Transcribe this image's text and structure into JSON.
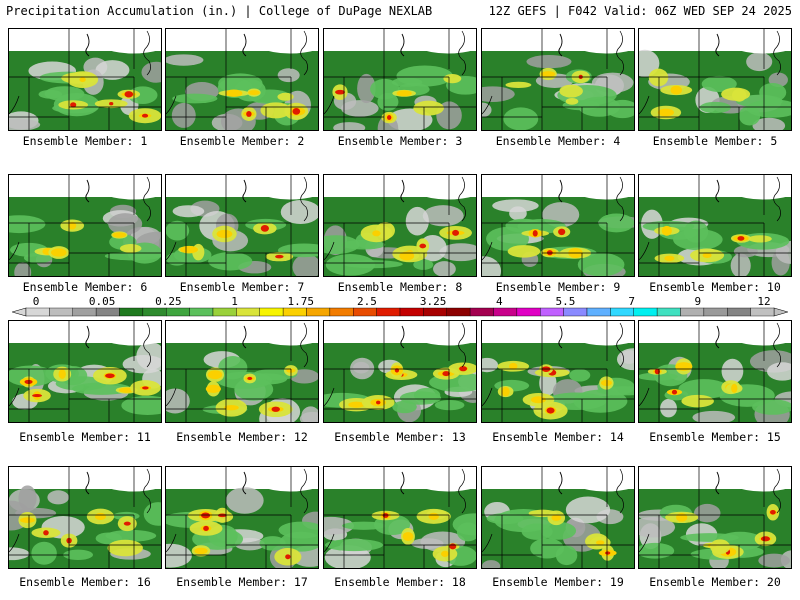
{
  "header": {
    "title_left": "Precipitation Accumulation (in.) | College of DuPage NEXLAB",
    "title_right": "12Z GEFS | F042 Valid: 06Z WED SEP 24 2025"
  },
  "colors": {
    "levels": [
      "#d7d7d7",
      "#bdbdbd",
      "#a0a0a0",
      "#858585",
      "#1f7a1f",
      "#2e8b2e",
      "#3fa53f",
      "#5cc05c",
      "#9ad13a",
      "#d9e43a",
      "#f7f400",
      "#fbd000",
      "#f6a600",
      "#f27c00",
      "#e84b00",
      "#e01b00",
      "#c40000",
      "#a80000",
      "#8c0000",
      "#a3004f",
      "#c8008a",
      "#e000c4",
      "#c060ff",
      "#8a8aff",
      "#5fb0ff",
      "#30d8ff",
      "#00f0f0",
      "#40e0c0",
      "#b0b0b0",
      "#9a9a9a",
      "#848484",
      "#c0c0c0"
    ],
    "background": "#ffffff"
  },
  "colorbar": {
    "tick_labels": [
      "0",
      "0.05",
      "0.25",
      "1",
      "1.75",
      "2.5",
      "3.25",
      "4",
      "5.5",
      "7",
      "9",
      "12"
    ]
  },
  "panels": [
    {
      "label": "Ensemble Member: 1",
      "intensity": 0.75
    },
    {
      "label": "Ensemble Member: 2",
      "intensity": 0.85
    },
    {
      "label": "Ensemble Member: 3",
      "intensity": 0.55
    },
    {
      "label": "Ensemble Member: 4",
      "intensity": 0.55
    },
    {
      "label": "Ensemble Member: 5",
      "intensity": 0.4
    },
    {
      "label": "Ensemble Member: 6",
      "intensity": 0.45
    },
    {
      "label": "Ensemble Member: 7",
      "intensity": 0.5
    },
    {
      "label": "Ensemble Member: 8",
      "intensity": 0.8
    },
    {
      "label": "Ensemble Member: 9",
      "intensity": 0.7
    },
    {
      "label": "Ensemble Member: 10",
      "intensity": 0.45
    },
    {
      "label": "Ensemble Member: 11",
      "intensity": 0.85
    },
    {
      "label": "Ensemble Member: 12",
      "intensity": 0.85
    },
    {
      "label": "Ensemble Member: 13",
      "intensity": 0.85
    },
    {
      "label": "Ensemble Member: 14",
      "intensity": 0.9
    },
    {
      "label": "Ensemble Member: 15",
      "intensity": 0.85
    },
    {
      "label": "Ensemble Member: 16",
      "intensity": 0.75
    },
    {
      "label": "Ensemble Member: 17",
      "intensity": 0.85
    },
    {
      "label": "Ensemble Member: 18",
      "intensity": 0.7
    },
    {
      "label": "Ensemble Member: 19",
      "intensity": 0.55
    },
    {
      "label": "Ensemble Member: 20",
      "intensity": 0.7
    }
  ]
}
